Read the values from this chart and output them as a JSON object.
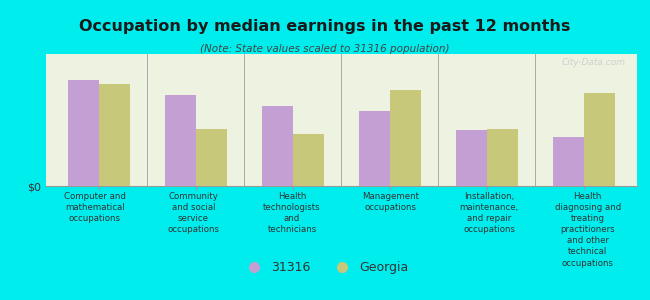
{
  "title": "Occupation by median earnings in the past 12 months",
  "subtitle": "(Note: State values scaled to 31316 population)",
  "background_color": "#00eded",
  "plot_bg_color": "#eef2e0",
  "categories": [
    "Computer and\nmathematical\noccupations",
    "Community\nand social\nservice\noccupations",
    "Health\ntechnologists\nand\ntechnicians",
    "Management\noccupations",
    "Installation,\nmaintenance,\nand repair\noccupations",
    "Health\ndiagnosing and\ntreating\npractitioners\nand other\ntechnical\noccupations"
  ],
  "values_31316": [
    0.82,
    0.7,
    0.62,
    0.58,
    0.43,
    0.38
  ],
  "values_georgia": [
    0.79,
    0.44,
    0.4,
    0.74,
    0.44,
    0.72
  ],
  "color_31316": "#c49fd4",
  "color_georgia": "#c8c87a",
  "bar_width": 0.32,
  "ylabel": "$0",
  "legend_31316": "31316",
  "legend_georgia": "Georgia",
  "watermark": "City-Data.com",
  "title_color": "#1a1a1a",
  "subtitle_color": "#444444",
  "label_color": "#333333"
}
